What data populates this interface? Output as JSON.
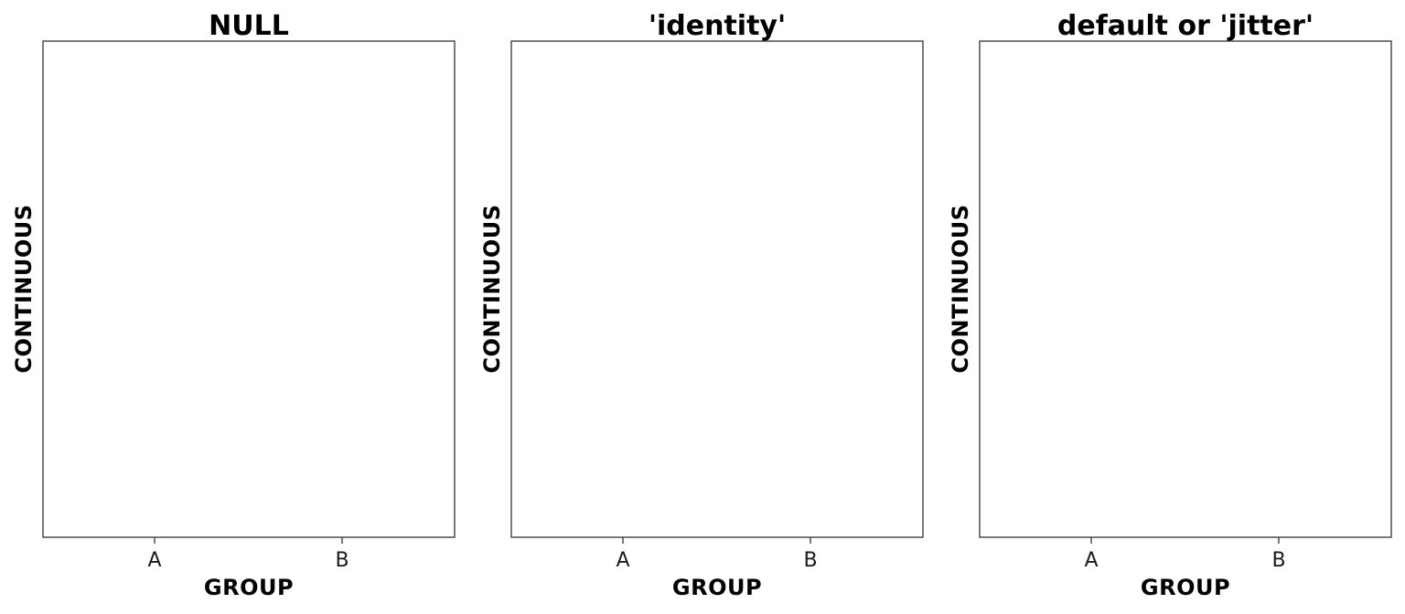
{
  "chart_data": [
    {
      "type": "scatter",
      "title": "NULL",
      "xlabel": "GROUP",
      "ylabel": "CONTINUOUS",
      "categories": [
        "A",
        "B"
      ],
      "series": [],
      "grid": false,
      "legend": "none"
    },
    {
      "type": "scatter",
      "title": "'identity'",
      "xlabel": "GROUP",
      "ylabel": "CONTINUOUS",
      "categories": [
        "A",
        "B"
      ],
      "series": [],
      "grid": false,
      "legend": "none"
    },
    {
      "type": "scatter",
      "title": "default or 'jitter'",
      "xlabel": "GROUP",
      "ylabel": "CONTINUOUS",
      "categories": [
        "A",
        "B"
      ],
      "series": [],
      "grid": false,
      "legend": "none"
    }
  ]
}
